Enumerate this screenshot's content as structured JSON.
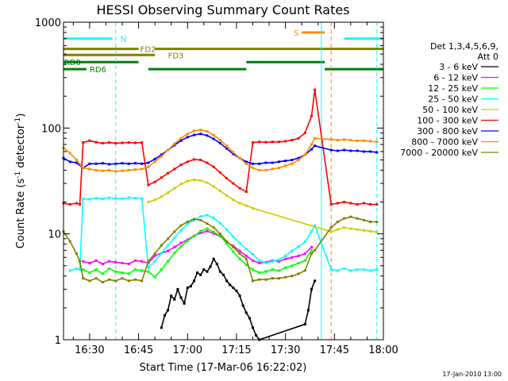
{
  "chart_data": {
    "type": "line",
    "title": "HESSI Observing Summary Count Rates",
    "xlabel": "Start Time (17-Mar-06 16:22:02)",
    "ylabel": "Count Rate (s⁻¹ detector⁻¹)",
    "ylabel_parts": {
      "main": "Count Rate (s",
      "sup1": "-1",
      "mid": " detector",
      "sup2": "-1",
      "end": ")"
    },
    "y_scale": "log",
    "ylim": [
      1,
      1000
    ],
    "xlim_minutes": [
      0,
      98
    ],
    "x_axis_start": "16:22:02",
    "x_tick_minutes": [
      8,
      23,
      38,
      53,
      68,
      83,
      98
    ],
    "x_tick_labels": [
      "16:30",
      "16:45",
      "17:00",
      "17:15",
      "17:30",
      "17:45",
      "18:00"
    ],
    "y_tick_values": [
      1,
      10,
      100,
      1000
    ],
    "y_tick_labels": [
      "1",
      "10",
      "100",
      "1000"
    ],
    "legend": {
      "header_line1": "Det 1,3,4,5,6,9,",
      "header_line2": "Att 0",
      "entries": [
        "3 - 6 keV",
        "6 - 12 keV",
        "12 - 25 keV",
        "25 - 50 keV",
        "50 - 100 keV",
        "100 - 300 keV",
        "300 - 800 keV",
        "800 - 7000 keV",
        "7000 - 20000 keV"
      ],
      "placement": "right"
    },
    "series": [
      {
        "name": "3 - 6 keV",
        "color": "#000000",
        "x": [
          30,
          31,
          32,
          33,
          34,
          35,
          36,
          37,
          38,
          39,
          40,
          41,
          42,
          43,
          44,
          45,
          46,
          47,
          48,
          49,
          50,
          51,
          52,
          53,
          54,
          55,
          56,
          57,
          58,
          59,
          60,
          74,
          75,
          76,
          77
        ],
        "y": [
          1.3,
          1.7,
          1.9,
          2.6,
          2.4,
          3.0,
          2.5,
          2.2,
          3.1,
          3.2,
          3.6,
          4.3,
          4.1,
          4.6,
          4.4,
          4.9,
          5.8,
          5.2,
          4.4,
          4.1,
          3.6,
          3.3,
          3.1,
          2.9,
          2.6,
          2.1,
          1.8,
          1.6,
          1.3,
          1.1,
          1.0,
          1.4,
          1.9,
          3.0,
          3.6
        ]
      },
      {
        "name": "6 - 12 keV",
        "color": "#ff00ff",
        "x": [
          6,
          8,
          10,
          12,
          14,
          16,
          18,
          20,
          22,
          24,
          26,
          28,
          30,
          32,
          34,
          36,
          38,
          40,
          42,
          44,
          46,
          48,
          50,
          52,
          54,
          56,
          58,
          60,
          62,
          64,
          66,
          68,
          70,
          72,
          74,
          76
        ],
        "y": [
          5.5,
          5.3,
          5.6,
          5.2,
          5.5,
          5.4,
          5.3,
          5.2,
          5.6,
          5.5,
          5.3,
          6.2,
          6.6,
          6.9,
          7.5,
          8.2,
          8.8,
          9.6,
          10.2,
          10.6,
          10.1,
          9.5,
          8.4,
          7.7,
          6.9,
          6.2,
          5.6,
          5.3,
          5.4,
          5.6,
          5.5,
          5.8,
          6.0,
          6.2,
          6.5,
          7.5
        ]
      },
      {
        "name": "12 - 25 keV",
        "color": "#00ff00",
        "x": [
          6,
          8,
          10,
          12,
          14,
          16,
          18,
          20,
          22,
          24,
          26,
          28,
          30,
          32,
          34,
          36,
          38,
          40,
          42,
          44,
          46,
          48,
          50,
          52,
          54,
          56,
          58,
          60,
          62,
          64,
          66,
          68,
          70,
          72,
          74,
          76
        ],
        "y": [
          4.6,
          4.3,
          4.6,
          4.2,
          4.7,
          4.4,
          4.3,
          4.2,
          4.6,
          4.5,
          4.4,
          3.9,
          4.6,
          5.5,
          6.6,
          7.6,
          8.6,
          9.5,
          10.6,
          11.2,
          10.4,
          9.6,
          8.1,
          6.8,
          5.8,
          5.1,
          4.6,
          4.3,
          4.4,
          4.6,
          4.5,
          4.8,
          5.0,
          5.3,
          5.6,
          7.0
        ]
      },
      {
        "name": "25 - 50 keV",
        "color": "#00ffff",
        "x": [
          2,
          4,
          5,
          6,
          8,
          10,
          12,
          14,
          16,
          18,
          20,
          22,
          24,
          26,
          28,
          30,
          32,
          34,
          36,
          38,
          40,
          42,
          44,
          46,
          48,
          50,
          52,
          54,
          56,
          58,
          60,
          62,
          64,
          66,
          68,
          70,
          72,
          74,
          76,
          77,
          82,
          84,
          86,
          88,
          90,
          92,
          94,
          96
        ],
        "y": [
          4.5,
          4.7,
          4.6,
          21.5,
          21.2,
          21.8,
          21.4,
          22.0,
          21.6,
          21.5,
          22.0,
          21.8,
          21.6,
          4.8,
          5.5,
          6.6,
          7.8,
          9.2,
          10.8,
          12.4,
          13.5,
          14.6,
          15.0,
          14.2,
          12.6,
          11.0,
          9.4,
          8.2,
          7.2,
          6.4,
          5.6,
          5.3,
          5.5,
          5.7,
          6.2,
          6.9,
          7.6,
          8.4,
          10.5,
          12.0,
          4.6,
          4.5,
          4.7,
          4.5,
          4.6,
          4.6,
          4.5,
          4.6
        ]
      },
      {
        "name": "50 - 100 keV",
        "color": "#cccc00",
        "x": [
          26,
          28,
          30,
          32,
          34,
          36,
          38,
          40,
          42,
          44,
          46,
          48,
          50,
          52,
          54,
          56,
          58,
          82,
          84,
          86,
          88,
          90,
          92,
          94,
          96
        ],
        "y": [
          20.0,
          21.0,
          22.5,
          24.5,
          27.0,
          29.5,
          31.5,
          32.5,
          32.0,
          30.5,
          28.0,
          25.5,
          23.0,
          21.0,
          19.5,
          18.5,
          17.5,
          10.5,
          11.0,
          11.5,
          11.2,
          11.0,
          10.8,
          10.6,
          10.4
        ]
      },
      {
        "name": "100 - 300 keV",
        "color": "#ff0000",
        "x": [
          0,
          2,
          4,
          5,
          6,
          8,
          10,
          12,
          14,
          16,
          18,
          20,
          22,
          24,
          26,
          28,
          30,
          32,
          34,
          36,
          38,
          40,
          42,
          44,
          46,
          48,
          50,
          52,
          54,
          56,
          58,
          60,
          62,
          64,
          66,
          68,
          70,
          72,
          74,
          76,
          77,
          82,
          84,
          86,
          88,
          90,
          92,
          94,
          96
        ],
        "y": [
          19.5,
          19.0,
          19.5,
          19.0,
          73.0,
          76.0,
          73.5,
          72.0,
          73.0,
          72.0,
          72.5,
          73.0,
          72.5,
          73.0,
          29.0,
          31.0,
          34.0,
          37.5,
          41.0,
          45.0,
          48.0,
          50.5,
          50.0,
          47.0,
          43.0,
          38.0,
          33.5,
          30.0,
          27.0,
          25.0,
          73.0,
          74.0,
          73.5,
          74.0,
          74.0,
          75.0,
          77.0,
          80.0,
          90.0,
          130.0,
          230.0,
          19.0,
          19.5,
          20.0,
          19.5,
          19.0,
          19.5,
          19.0,
          19.0
        ]
      },
      {
        "name": "300 - 800 keV",
        "color": "#0000ff",
        "x": [
          0,
          2,
          4,
          6,
          8,
          10,
          12,
          14,
          16,
          18,
          20,
          22,
          24,
          26,
          28,
          30,
          32,
          34,
          36,
          38,
          40,
          42,
          44,
          46,
          48,
          50,
          52,
          54,
          56,
          58,
          60,
          62,
          64,
          66,
          68,
          70,
          72,
          74,
          76,
          77,
          82,
          84,
          86,
          88,
          90,
          92,
          94,
          96
        ],
        "y": [
          52.0,
          48.0,
          47.0,
          42.0,
          46.0,
          46.0,
          46.5,
          45.5,
          46.0,
          46.5,
          46.0,
          46.5,
          46.0,
          47.0,
          51.0,
          56.0,
          62.0,
          69.0,
          76.0,
          82.0,
          86.0,
          88.0,
          85.0,
          79.0,
          72.0,
          64.0,
          57.0,
          52.0,
          48.0,
          46.0,
          46.0,
          47.0,
          47.0,
          48.0,
          49.0,
          50.0,
          52.0,
          56.0,
          63.0,
          68.0,
          62.0,
          61.0,
          62.0,
          61.0,
          61.0,
          60.0,
          60.0,
          59.0
        ]
      },
      {
        "name": "800 - 7000 keV",
        "color": "#ff8800",
        "x": [
          0,
          2,
          4,
          6,
          8,
          10,
          12,
          14,
          16,
          18,
          20,
          22,
          24,
          26,
          28,
          30,
          32,
          34,
          36,
          38,
          40,
          42,
          44,
          46,
          48,
          50,
          52,
          54,
          56,
          58,
          60,
          62,
          64,
          66,
          68,
          70,
          72,
          74,
          76,
          77,
          82,
          84,
          86,
          88,
          90,
          92,
          94,
          96
        ],
        "y": [
          65.0,
          58.0,
          50.0,
          42.0,
          41.0,
          40.0,
          39.5,
          40.0,
          39.0,
          39.5,
          40.0,
          40.5,
          41.0,
          43.0,
          48.0,
          54.0,
          62.0,
          71.0,
          80.0,
          88.0,
          94.0,
          96.0,
          93.0,
          86.0,
          77.0,
          68.0,
          59.0,
          52.0,
          46.0,
          42.0,
          40.0,
          40.0,
          41.0,
          42.0,
          44.0,
          46.0,
          50.0,
          56.0,
          70.0,
          80.0,
          78.0,
          77.0,
          78.0,
          77.0,
          76.0,
          76.0,
          75.0,
          74.0
        ]
      },
      {
        "name": "7000 - 20000 keV",
        "color": "#808000",
        "x": [
          0,
          2,
          4,
          5,
          6,
          8,
          10,
          12,
          14,
          16,
          18,
          20,
          22,
          24,
          26,
          28,
          30,
          32,
          34,
          36,
          38,
          40,
          42,
          44,
          46,
          48,
          50,
          52,
          54,
          56,
          58,
          60,
          62,
          64,
          66,
          68,
          70,
          72,
          74,
          76,
          77,
          82,
          84,
          86,
          88,
          90,
          92,
          94,
          96
        ],
        "y": [
          10.5,
          8.5,
          6.5,
          5.5,
          3.8,
          3.6,
          3.8,
          3.5,
          3.7,
          3.6,
          3.8,
          3.6,
          3.7,
          3.6,
          5.5,
          6.5,
          7.8,
          9.0,
          10.5,
          12.0,
          13.0,
          13.8,
          13.5,
          12.5,
          11.5,
          10.0,
          8.5,
          7.5,
          6.5,
          5.8,
          3.6,
          3.7,
          3.7,
          3.8,
          3.8,
          3.9,
          4.0,
          4.2,
          4.5,
          6.5,
          7.0,
          11.5,
          13.0,
          14.0,
          14.5,
          14.0,
          13.5,
          13.0,
          13.0
        ]
      }
    ],
    "flags": [
      {
        "label": "N",
        "color": "#00ffff",
        "level": 700,
        "segments": [
          [
            0,
            15
          ],
          [
            86,
            98
          ]
        ],
        "label_at": 17.5
      },
      {
        "label": "S",
        "color": "#ff8800",
        "level": 800,
        "segments": [
          [
            73,
            80
          ]
        ],
        "label_at": 70.5
      },
      {
        "label": "FD2",
        "color": "#808000",
        "level": 560,
        "segments": [
          [
            0,
            23
          ],
          [
            28,
            98
          ]
        ],
        "label_at": 23.5
      },
      {
        "label": "FD3",
        "color": "#808000",
        "level": 490,
        "segments": [
          [
            0,
            28
          ]
        ],
        "label_at": 32
      },
      {
        "label": "RD0",
        "color": "#008000",
        "level": 420,
        "segments": [
          [
            0,
            23
          ],
          [
            56,
            80
          ]
        ],
        "label_at": 0.2
      },
      {
        "label": "RD6",
        "color": "#008000",
        "level": 360,
        "segments": [
          [
            0,
            7
          ],
          [
            26,
            56
          ],
          [
            80,
            98
          ]
        ],
        "label_at": 8
      }
    ],
    "vertical_markers": [
      {
        "minute": 16,
        "color": "#00ffff",
        "dashed": true
      },
      {
        "minute": 79,
        "color": "#00ffff",
        "dashed": false
      },
      {
        "minute": 82,
        "color": "#ff8800",
        "dashed": true
      },
      {
        "minute": 96,
        "color": "#00ffff",
        "dashed": true
      },
      {
        "minute": 0,
        "color": "#00ffff",
        "dashed": false
      }
    ],
    "grid": false
  },
  "footer": {
    "timestamp": "17-Jan-2010 13:00"
  }
}
